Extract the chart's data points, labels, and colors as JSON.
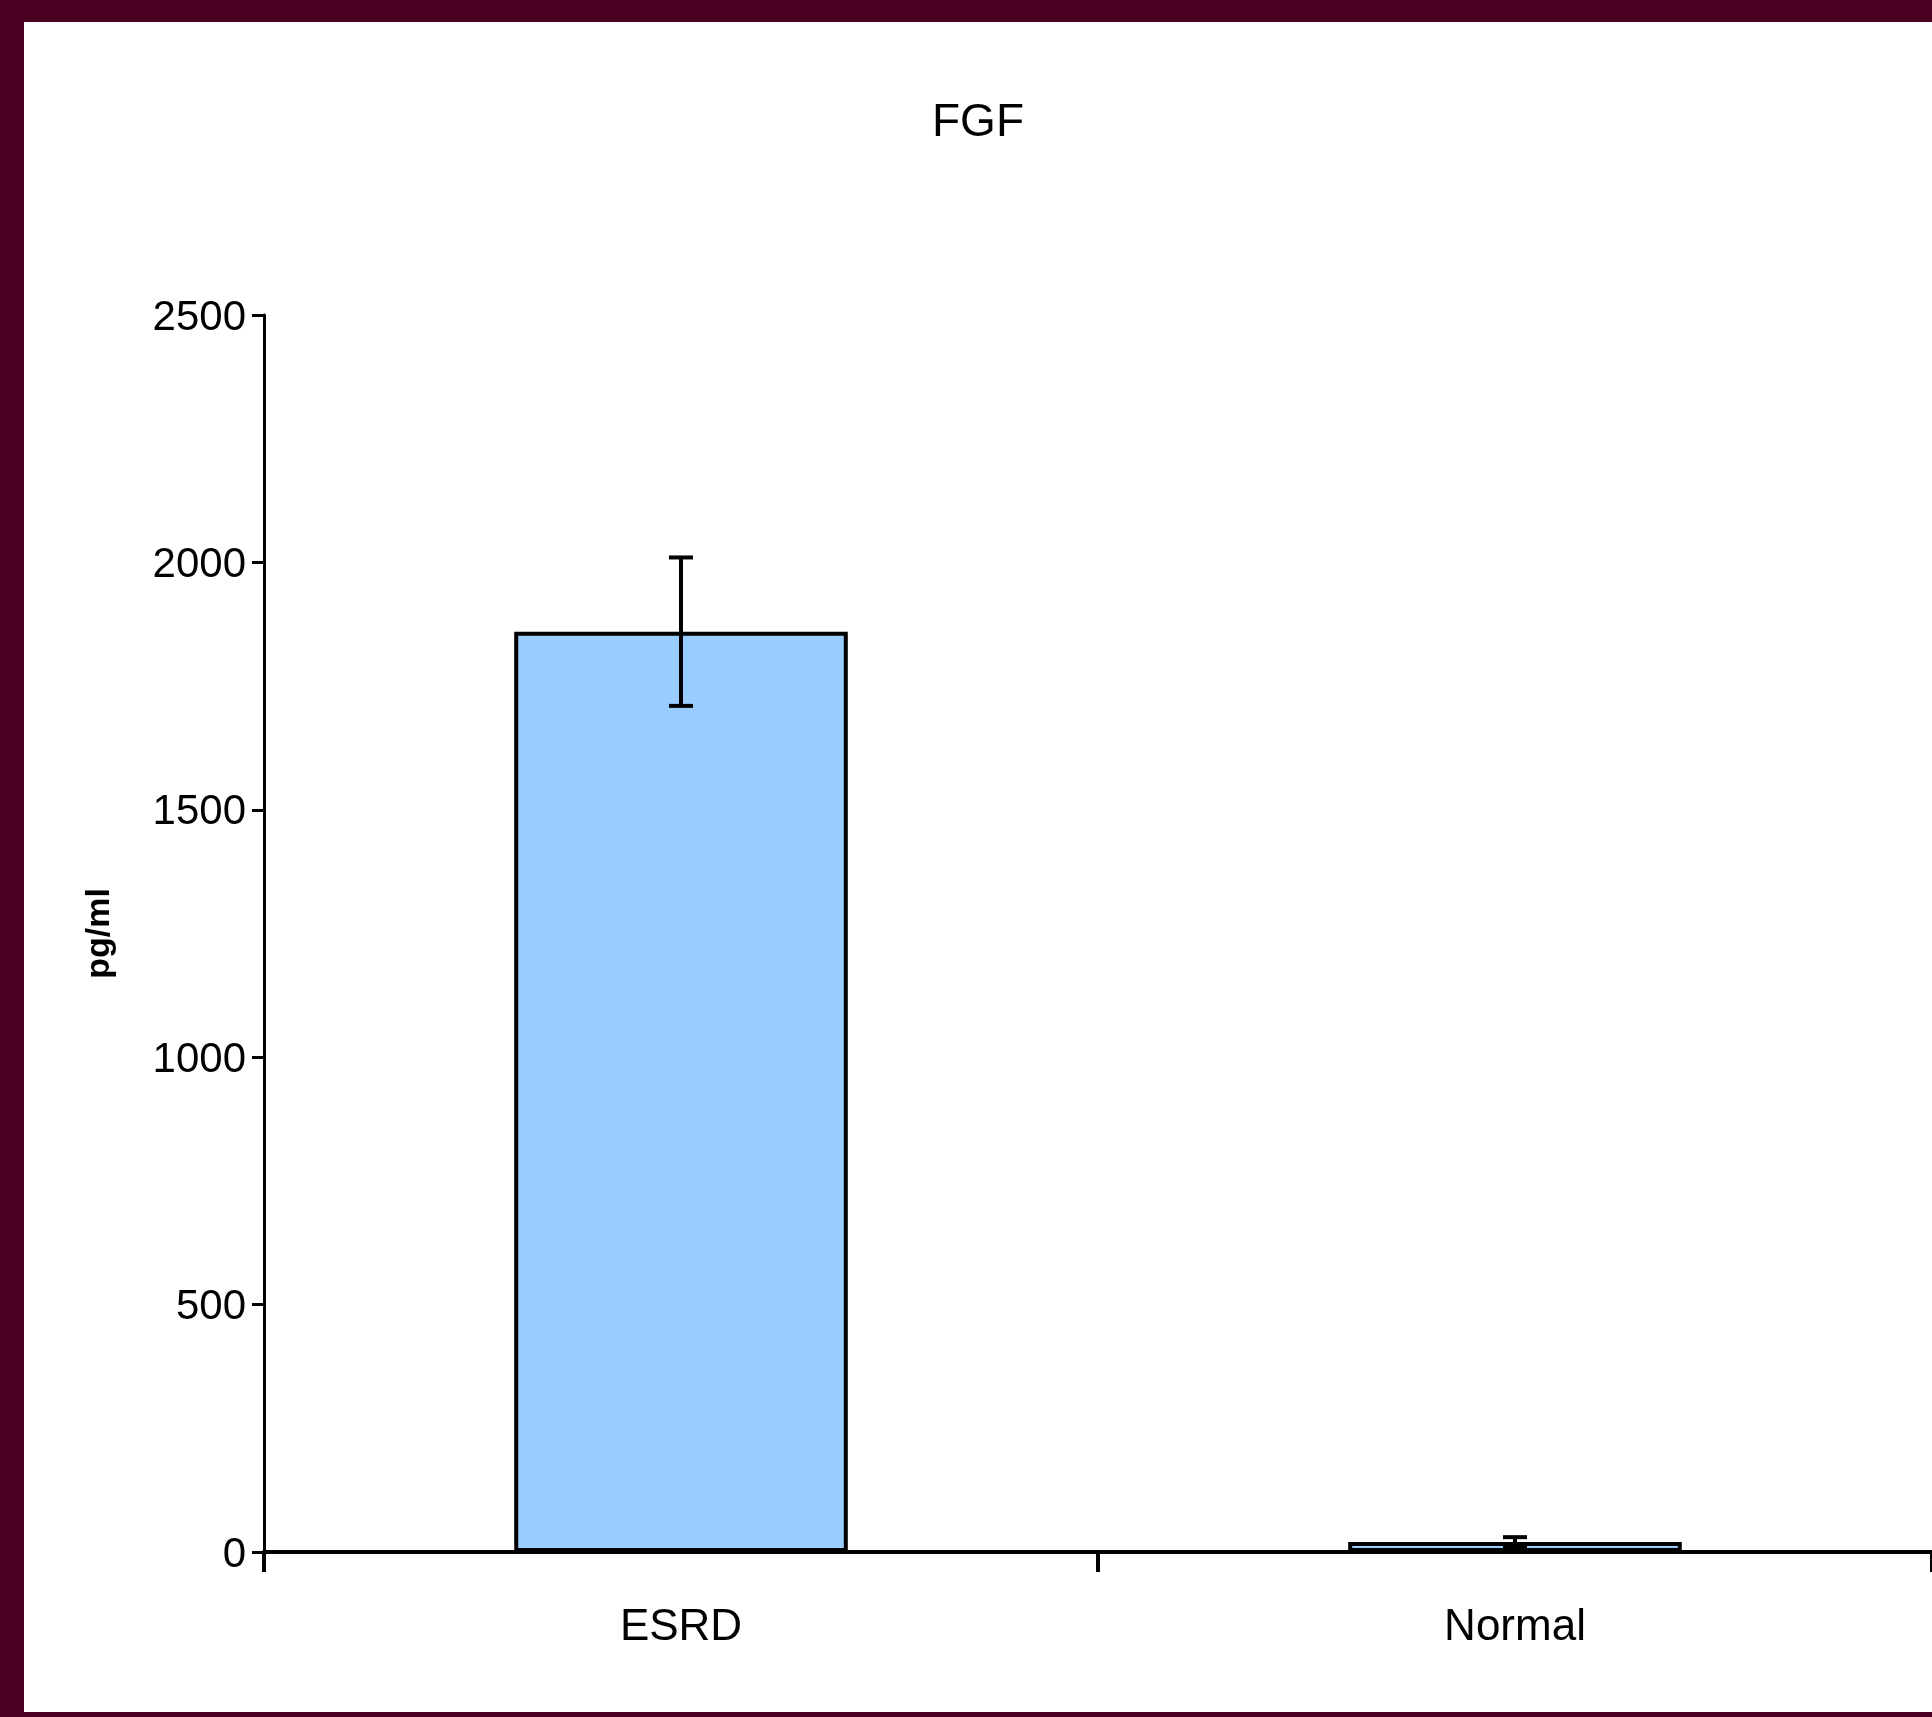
{
  "chart_data": {
    "type": "bar",
    "title": "FGF",
    "ylabel": "pg/ml",
    "categories": [
      "ESRD",
      "Normal"
    ],
    "values": [
      1860,
      20
    ],
    "errors": [
      150,
      10
    ],
    "color": "#99ccff",
    "ylim": [
      0,
      2500
    ],
    "yticks": [
      0,
      500,
      1000,
      1500,
      2000,
      2500
    ],
    "grid": false
  }
}
